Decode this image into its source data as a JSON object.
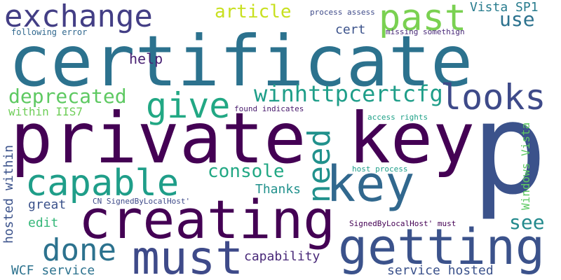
{
  "words": [
    {
      "text": "p",
      "color": "#3b528b"
    },
    {
      "text": "certificate",
      "color": "#2c728e"
    },
    {
      "text": "private key",
      "color": "#440154"
    },
    {
      "text": "key",
      "color": "#31688e"
    },
    {
      "text": "creating",
      "color": "#440154"
    },
    {
      "text": "getting",
      "color": "#3b528b"
    },
    {
      "text": "must",
      "color": "#3e4a89"
    },
    {
      "text": "exchange",
      "color": "#433e85"
    },
    {
      "text": "past",
      "color": "#7ad151"
    },
    {
      "text": "capable",
      "color": "#1f9e89"
    },
    {
      "text": "give",
      "color": "#22a884"
    },
    {
      "text": "looks",
      "color": "#3e4a89"
    },
    {
      "text": "need",
      "color": "#21918c"
    },
    {
      "text": "done",
      "color": "#2c728e"
    },
    {
      "text": "winhttpcertcfg",
      "color": "#1f9e89"
    },
    {
      "text": "deprecated",
      "color": "#5ec962"
    },
    {
      "text": "console",
      "color": "#22a884"
    },
    {
      "text": "article",
      "color": "#c8e020"
    },
    {
      "text": "use",
      "color": "#2c728e"
    },
    {
      "text": "Vista SP1",
      "color": "#287c8e"
    },
    {
      "text": "see",
      "color": "#238a8d"
    },
    {
      "text": "help",
      "color": "#482173"
    },
    {
      "text": "cert",
      "color": "#3b528b"
    },
    {
      "text": "Thanks",
      "color": "#21918c"
    },
    {
      "text": "great",
      "color": "#3b528b"
    },
    {
      "text": "edit",
      "color": "#35b779"
    },
    {
      "text": "capability",
      "color": "#482878"
    },
    {
      "text": "within IIS7",
      "color": "#6ece58"
    },
    {
      "text": "within",
      "color": "#3b528b"
    },
    {
      "text": "hosted",
      "color": "#3b528b"
    },
    {
      "text": "Windows Vista",
      "color": "#5ec962"
    },
    {
      "text": "WCF service",
      "color": "#2c728e"
    },
    {
      "text": "service hosted",
      "color": "#3b528b"
    },
    {
      "text": "following error",
      "color": "#31688e"
    },
    {
      "text": "process assess",
      "color": "#3e4a89"
    },
    {
      "text": "missing somethign",
      "color": "#482878"
    },
    {
      "text": "found indicates",
      "color": "#481a6c"
    },
    {
      "text": "access rights",
      "color": "#1fa187"
    },
    {
      "text": "host process",
      "color": "#1f9e89"
    },
    {
      "text": "CN SignedByLocalHost'",
      "color": "#3e4a89"
    },
    {
      "text": "SignedByLocalHost' must",
      "color": "#440154"
    }
  ]
}
